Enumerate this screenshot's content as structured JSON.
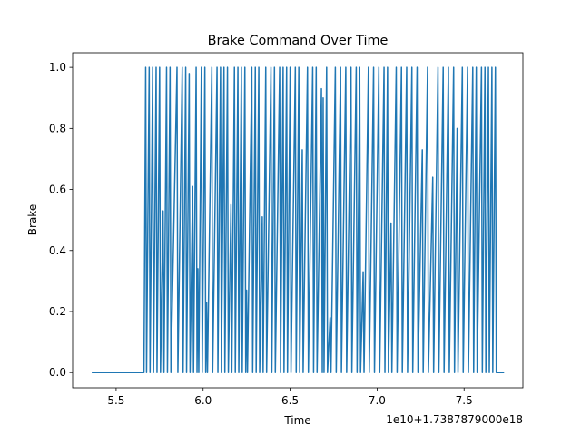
{
  "chart_data": {
    "type": "line",
    "title": "Brake Command Over Time",
    "x_label": "Time",
    "y_label": "Brake",
    "x_offset_text": "1e10+1.7387879000e18",
    "xlim": [
      5.25,
      7.838
    ],
    "ylim": [
      -0.05,
      1.048
    ],
    "xticks": [
      5.5,
      {
        "value": 6,
        "label": "6.0"
      },
      6.5,
      {
        "value": 7,
        "label": "7.0"
      },
      7.5
    ],
    "yticks": [
      {
        "value": 0,
        "label": "0.0"
      },
      0.2,
      0.4,
      0.6,
      0.8,
      {
        "value": 1,
        "label": "1.0"
      }
    ],
    "grid": false,
    "x": [
      5.36,
      5.66,
      5.67,
      5.675,
      5.69,
      5.695,
      5.71,
      5.715,
      5.73,
      5.735,
      5.75,
      5.755,
      5.77,
      5.775,
      5.79,
      5.795,
      5.81,
      5.815,
      5.85,
      5.855,
      5.88,
      5.885,
      5.9,
      5.905,
      5.92,
      5.925,
      5.94,
      5.945,
      5.96,
      5.965,
      5.97,
      5.975,
      5.99,
      5.995,
      6.01,
      6.015,
      6.02,
      6.025,
      6.05,
      6.055,
      6.08,
      6.085,
      6.1,
      6.105,
      6.12,
      6.125,
      6.14,
      6.145,
      6.16,
      6.165,
      6.18,
      6.185,
      6.2,
      6.205,
      6.22,
      6.225,
      6.24,
      6.245,
      6.25,
      6.255,
      6.28,
      6.285,
      6.3,
      6.305,
      6.32,
      6.325,
      6.34,
      6.345,
      6.36,
      6.365,
      6.39,
      6.395,
      6.41,
      6.415,
      6.44,
      6.445,
      6.46,
      6.465,
      6.48,
      6.485,
      6.5,
      6.505,
      6.53,
      6.535,
      6.55,
      6.555,
      6.57,
      6.575,
      6.6,
      6.605,
      6.63,
      6.635,
      6.65,
      6.655,
      6.68,
      6.685,
      6.69,
      6.695,
      6.71,
      6.715,
      6.73,
      6.735,
      6.76,
      6.765,
      6.79,
      6.795,
      6.82,
      6.825,
      6.85,
      6.855,
      6.88,
      6.885,
      6.9,
      6.905,
      6.92,
      6.925,
      6.95,
      6.955,
      6.98,
      6.985,
      7.01,
      7.015,
      7.04,
      7.045,
      7.06,
      7.065,
      7.08,
      7.085,
      7.11,
      7.115,
      7.14,
      7.145,
      7.17,
      7.175,
      7.2,
      7.205,
      7.23,
      7.235,
      7.26,
      7.265,
      7.29,
      7.295,
      7.32,
      7.325,
      7.35,
      7.355,
      7.38,
      7.385,
      7.41,
      7.415,
      7.44,
      7.445,
      7.46,
      7.465,
      7.49,
      7.495,
      7.52,
      7.525,
      7.55,
      7.555,
      7.57,
      7.575,
      7.6,
      7.605,
      7.62,
      7.625,
      7.64,
      7.645,
      7.66,
      7.665,
      7.68,
      7.685,
      7.73
    ],
    "series": [
      {
        "name": "Brake",
        "color": "#1f77b4",
        "values": [
          0,
          0,
          1,
          0,
          1,
          0,
          1,
          0,
          1,
          0,
          1,
          0,
          0.53,
          0,
          1,
          0,
          1,
          0,
          1,
          0,
          1,
          0,
          1,
          0,
          0.98,
          0,
          0.61,
          0,
          1,
          0,
          0.34,
          0,
          1,
          0,
          1,
          0,
          0.23,
          0,
          1,
          0,
          1,
          0,
          1,
          0,
          1,
          0,
          1,
          0,
          0.55,
          0,
          1,
          0,
          1,
          0,
          1,
          0,
          1,
          0,
          0.27,
          0,
          1,
          0,
          1,
          0,
          1,
          0,
          0.51,
          0,
          1,
          0,
          1,
          0,
          1,
          0,
          1,
          0,
          1,
          0,
          1,
          0,
          1,
          0,
          1,
          0,
          1,
          0,
          0.73,
          0,
          1,
          0,
          1,
          0,
          1,
          0,
          0.93,
          0,
          0.9,
          0,
          1,
          0,
          0.18,
          0,
          1,
          0,
          1,
          0,
          1,
          0,
          1,
          0,
          1,
          0,
          1,
          0,
          0.33,
          0,
          1,
          0,
          1,
          0,
          1,
          0,
          1,
          0,
          1,
          0,
          0.49,
          0,
          1,
          0,
          1,
          0,
          1,
          0,
          1,
          0,
          1,
          0,
          0.73,
          0,
          1,
          0,
          0.64,
          0,
          1,
          0,
          1,
          0,
          1,
          0,
          1,
          0,
          0.8,
          0,
          1,
          0,
          1,
          0,
          1,
          0,
          1,
          0,
          1,
          0,
          1,
          0,
          1,
          0,
          1,
          0,
          1,
          0,
          0
        ]
      }
    ]
  }
}
